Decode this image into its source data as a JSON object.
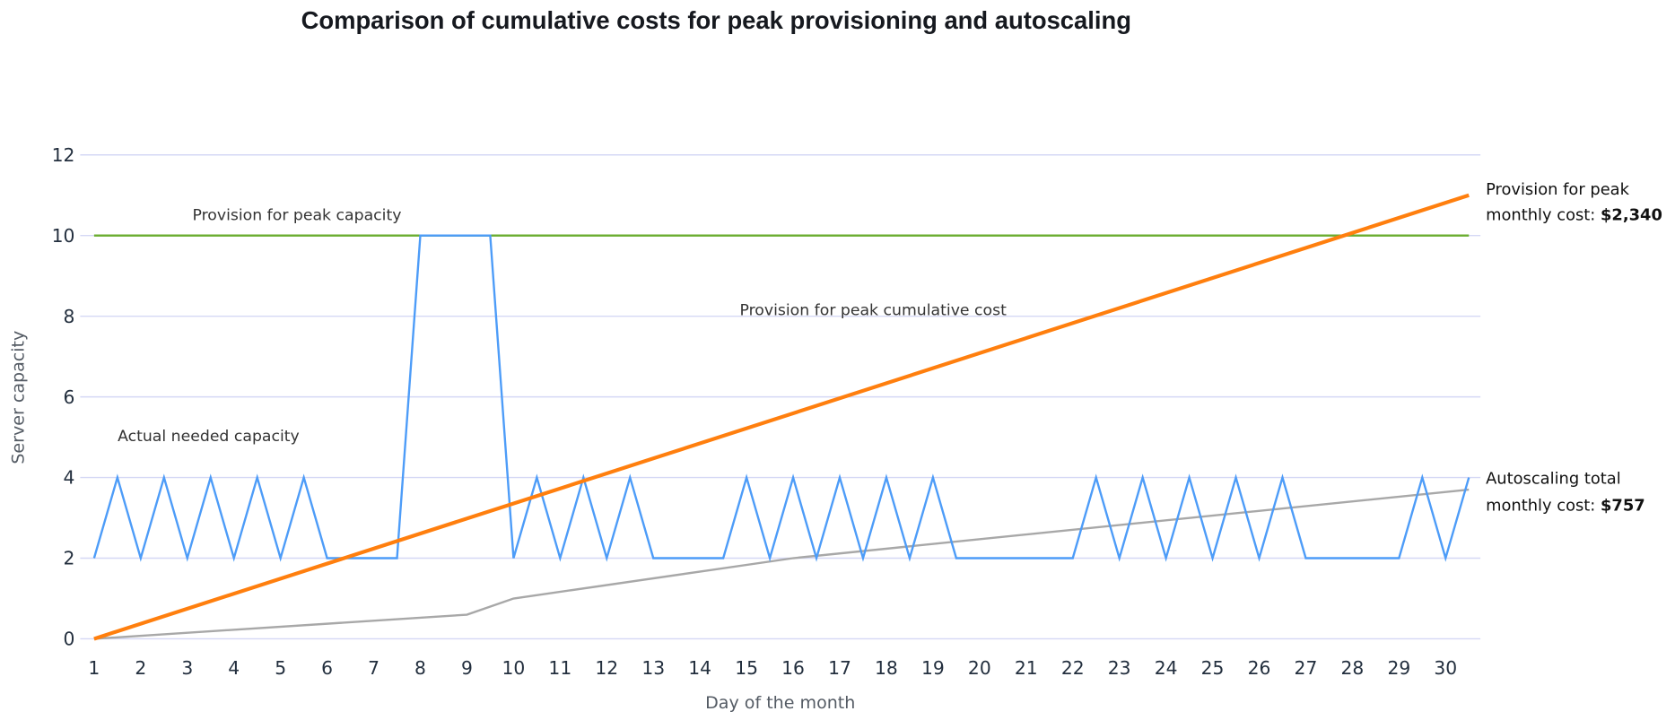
{
  "chart_data": {
    "type": "line",
    "title": "Comparison of cumulative costs for peak provisioning and autoscaling",
    "xlabel": "Day of the month",
    "ylabel": "Server capacity",
    "ylim": [
      0,
      12
    ],
    "yticks": [
      "0",
      "2",
      "4",
      "6",
      "8",
      "10",
      "12"
    ],
    "xticks": [
      "1",
      "2",
      "3",
      "4",
      "5",
      "6",
      "7",
      "8",
      "9",
      "10",
      "11",
      "12",
      "13",
      "14",
      "15",
      "16",
      "17",
      "18",
      "19",
      "20",
      "21",
      "22",
      "23",
      "24",
      "25",
      "26",
      "27",
      "28",
      "29",
      "30"
    ],
    "grid": true,
    "series": [
      {
        "name": "Provision for peak capacity",
        "color": "#6aad2f",
        "x": [
          1,
          30.5
        ],
        "y": [
          10,
          10
        ]
      },
      {
        "name": "Provision for peak cumulative cost",
        "color": "#ff7f0e",
        "x": [
          1,
          30.5
        ],
        "y": [
          0,
          11
        ]
      },
      {
        "name": "Actual needed capacity",
        "color": "#4d9cf8",
        "x": [
          1,
          1.5,
          2,
          2.5,
          3,
          3.5,
          4,
          4.5,
          5,
          5.5,
          6,
          6.5,
          7,
          7.5,
          8,
          8.5,
          9,
          9.5,
          10,
          10.5,
          11,
          11.5,
          12,
          12.5,
          13,
          13.5,
          14,
          14.5,
          15,
          15.5,
          16,
          16.5,
          17,
          17.5,
          18,
          18.5,
          19,
          19.5,
          20,
          20.5,
          21,
          21.5,
          22,
          22.5,
          23,
          23.5,
          24,
          24.5,
          25,
          25.5,
          26,
          26.5,
          27,
          27.5,
          28,
          28.5,
          29,
          29.5,
          30,
          30.5
        ],
        "y": [
          2,
          4,
          2,
          4,
          2,
          4,
          2,
          4,
          2,
          4,
          2,
          2,
          2,
          2,
          10,
          10,
          10,
          10,
          2,
          4,
          2,
          4,
          2,
          4,
          2,
          2,
          2,
          2,
          4,
          2,
          4,
          2,
          4,
          2,
          4,
          2,
          4,
          2,
          2,
          2,
          2,
          2,
          2,
          4,
          2,
          4,
          2,
          4,
          2,
          4,
          2,
          4,
          2,
          2,
          2,
          2,
          2,
          4,
          2,
          4
        ]
      },
      {
        "name": "Autoscaling total",
        "color": "#a8a8a8",
        "x": [
          1,
          9,
          10,
          16,
          30.5
        ],
        "y": [
          0,
          0.6,
          1,
          2,
          3.7
        ]
      }
    ],
    "annotations": {
      "peak_capacity": "Provision for peak capacity",
      "peak_cumulative": "Provision for peak cumulative cost",
      "actual": "Actual needed capacity",
      "peak_total_line1": "Provision for peak",
      "peak_total_line2": "monthly cost: ",
      "peak_total_value": "$2,340",
      "auto_total_line1": "Autoscaling total",
      "auto_total_line2": "monthly cost: ",
      "auto_total_value": "$757"
    },
    "gridline_color": "#d5d8f5"
  }
}
